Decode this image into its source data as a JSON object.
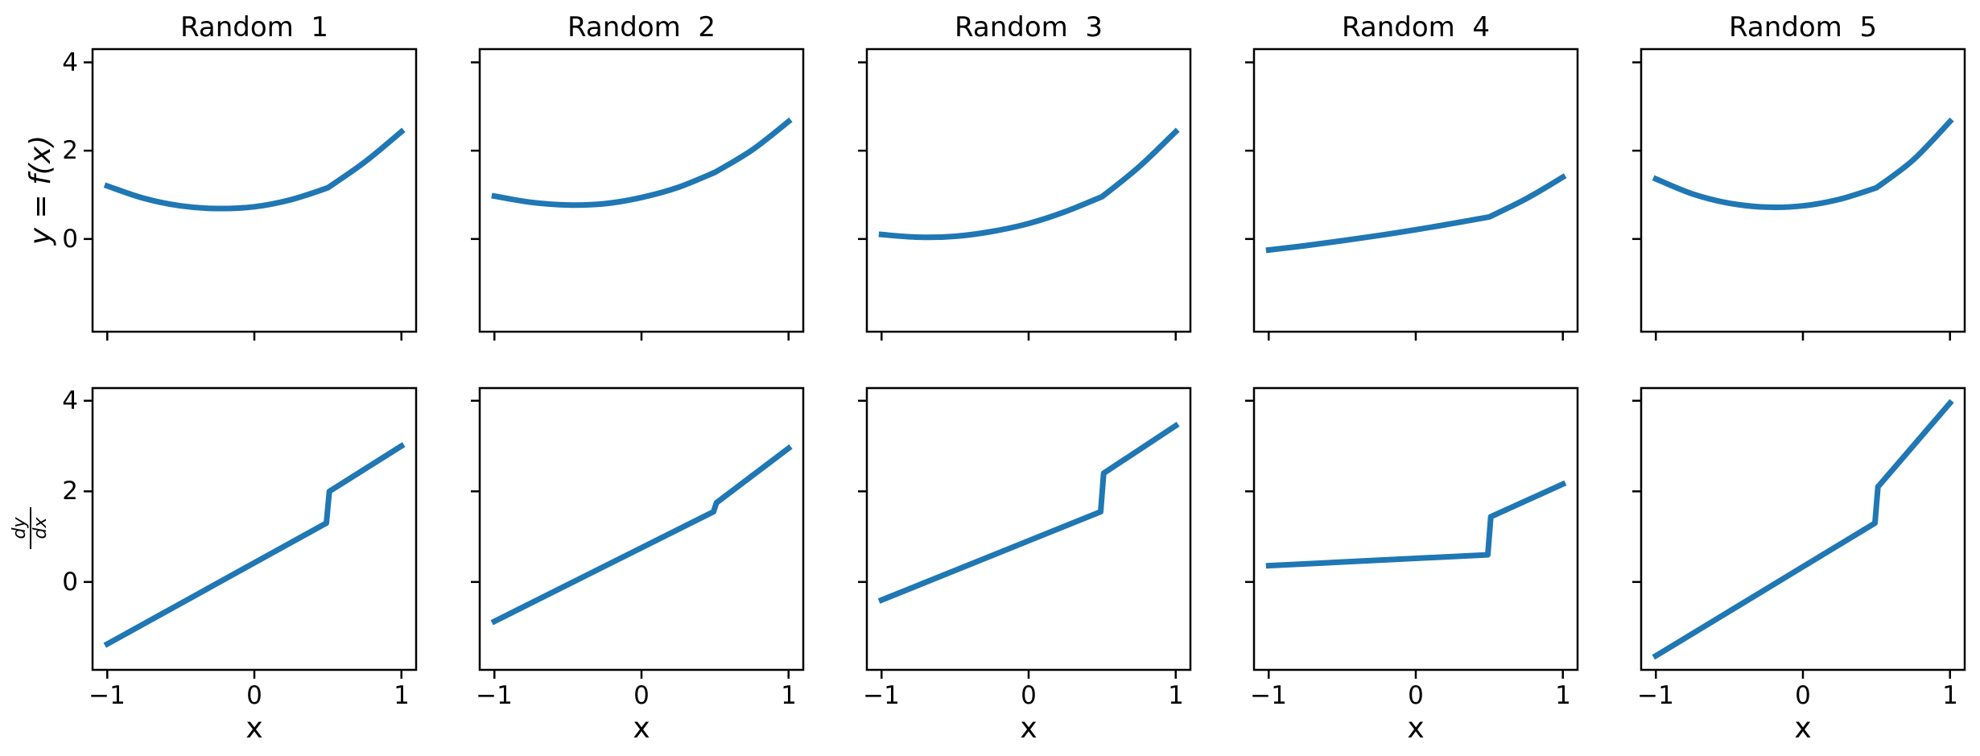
{
  "figure": {
    "background": "#ffffff",
    "text_color": "#000000",
    "axis_color": "#000000"
  },
  "chart_data": {
    "type": "line",
    "layout": "2 rows x 5 columns, shared x axis per column, shared y axis per row",
    "line_color": "#1f77b4",
    "xlabel": "x",
    "xlim": [
      -1.1,
      1.1
    ],
    "xticks": [
      -1,
      0,
      1
    ],
    "xtick_labels": [
      "−1",
      "0",
      "1"
    ],
    "f_x": [
      -1,
      -0.75,
      -0.5,
      -0.25,
      0,
      0.25,
      0.5,
      0.75,
      1
    ],
    "f_corner_index": 6,
    "dfdx_x": [
      -1,
      0.49,
      0.51,
      1
    ],
    "rows": [
      {
        "ylabel": "y = f(x)",
        "ylim": [
          -2.1,
          4.3
        ],
        "yticks": [
          4,
          2,
          0
        ],
        "ytick_labels": [
          "4",
          "2",
          "0"
        ]
      },
      {
        "ylabel_numerator": "dy",
        "ylabel_denominator": "dx",
        "ylim": [
          -1.94,
          4.28
        ],
        "yticks": [
          4,
          2,
          0
        ],
        "ytick_labels": [
          "4",
          "2",
          "0"
        ]
      }
    ],
    "columns": [
      {
        "title": "Random  1",
        "f_y": [
          1.2,
          0.92,
          0.75,
          0.69,
          0.73,
          0.89,
          1.16,
          1.74,
          2.43
        ],
        "dfdx_y": [
          -1.37,
          1.3,
          2.0,
          3.0
        ]
      },
      {
        "title": "Random  2",
        "f_y": [
          0.97,
          0.83,
          0.77,
          0.8,
          0.94,
          1.17,
          1.51,
          2.01,
          2.66
        ],
        "dfdx_y": [
          -0.87,
          1.55,
          1.75,
          2.95
        ]
      },
      {
        "title": "Random  3",
        "f_y": [
          0.1,
          0.04,
          0.06,
          0.17,
          0.35,
          0.62,
          0.96,
          1.63,
          2.43
        ],
        "dfdx_y": [
          -0.4,
          1.55,
          2.4,
          3.45
        ]
      },
      {
        "title": "Random  4",
        "f_y": [
          -0.25,
          -0.15,
          -0.04,
          0.08,
          0.21,
          0.35,
          0.5,
          0.91,
          1.4
        ],
        "dfdx_y": [
          0.36,
          0.6,
          1.44,
          2.16
        ]
      },
      {
        "title": "Random  5",
        "f_y": [
          1.36,
          1.02,
          0.81,
          0.72,
          0.75,
          0.9,
          1.16,
          1.79,
          2.66
        ],
        "dfdx_y": [
          -1.63,
          1.3,
          2.1,
          3.95
        ]
      }
    ]
  }
}
